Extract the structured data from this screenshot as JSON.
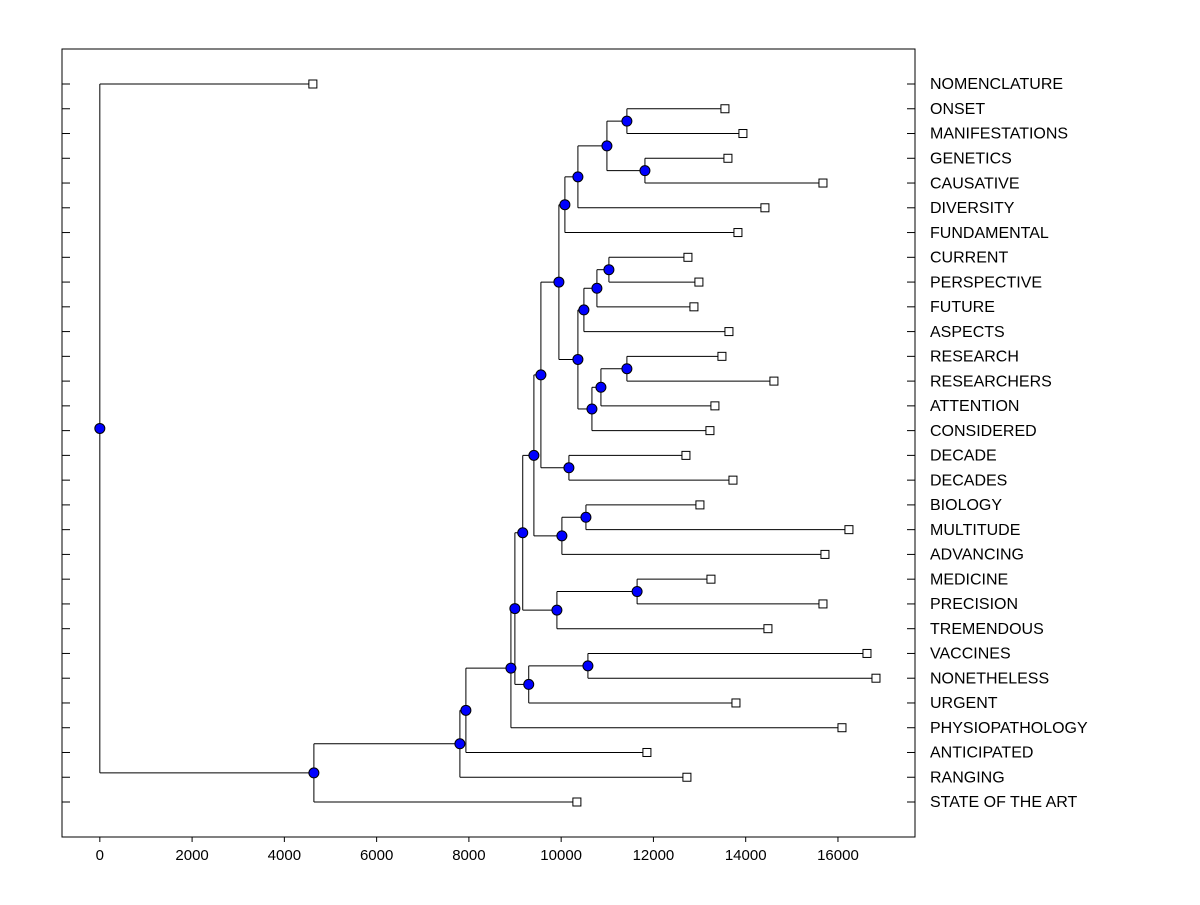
{
  "chart_data": {
    "type": "dendrogram",
    "xlim": [
      -820,
      17670
    ],
    "xticks": [
      0,
      2000,
      4000,
      6000,
      8000,
      10000,
      12000,
      14000,
      16000
    ],
    "node_color": "#0000ff",
    "tree": {
      "value": 0,
      "children": [
        {
          "label": "NOMENCLATURE",
          "value": 4618
        },
        {
          "value": 4640,
          "children": [
            {
              "value": 7805,
              "children": [
                {
                  "value": 7935,
                  "children": [
                    {
                      "value": 8911,
                      "children": [
                        {
                          "value": 8997,
                          "children": [
                            {
                              "value": 9167,
                              "children": [
                                {
                                  "value": 9409,
                                  "children": [
                                    {
                                      "value": 9561,
                                      "children": [
                                        {
                                          "value": 9951,
                                          "children": [
                                            {
                                              "value": 10081,
                                              "children": [
                                                {
                                                  "value": 10363,
                                                  "children": [
                                                    {
                                                      "value": 10992,
                                                      "children": [
                                                        {
                                                          "value": 11425,
                                                          "children": [
                                                            {
                                                              "label": "ONSET",
                                                              "value": 13550
                                                            },
                                                            {
                                                              "label": "MANIFESTATIONS",
                                                              "value": 13940
                                                            }
                                                          ]
                                                        },
                                                        {
                                                          "value": 11816,
                                                          "children": [
                                                            {
                                                              "label": "GENETICS",
                                                              "value": 13615
                                                            },
                                                            {
                                                              "label": "CAUSATIVE",
                                                              "value": 15675
                                                            }
                                                          ]
                                                        }
                                                      ]
                                                    },
                                                    {
                                                      "label": "DIVERSITY",
                                                      "value": 14417
                                                    }
                                                  ]
                                                },
                                                {
                                                  "label": "FUNDAMENTAL",
                                                  "value": 13832
                                                }
                                              ]
                                            },
                                            {
                                              "value": 10363,
                                              "children": [
                                                {
                                                  "value": 10493,
                                                  "children": [
                                                    {
                                                      "value": 10775,
                                                      "children": [
                                                        {
                                                          "value": 11035,
                                                          "children": [
                                                            {
                                                              "label": "CURRENT",
                                                              "value": 12748
                                                            },
                                                            {
                                                              "label": "PERSPECTIVE",
                                                              "value": 12986
                                                            }
                                                          ]
                                                        },
                                                        {
                                                          "label": "FUTURE",
                                                          "value": 12878
                                                        }
                                                      ]
                                                    },
                                                    {
                                                      "label": "ASPECTS",
                                                      "value": 13637
                                                    }
                                                  ]
                                                },
                                                {
                                                  "value": 10667,
                                                  "children": [
                                                    {
                                                      "value": 10862,
                                                      "children": [
                                                        {
                                                          "value": 11425,
                                                          "children": [
                                                            {
                                                              "label": "RESEARCH",
                                                              "value": 13485
                                                            },
                                                            {
                                                              "label": "RESEARCHERS",
                                                              "value": 14612
                                                            }
                                                          ]
                                                        },
                                                        {
                                                          "label": "ATTENTION",
                                                          "value": 13333
                                                        }
                                                      ]
                                                    },
                                                    {
                                                      "label": "CONSIDERED",
                                                      "value": 13225
                                                    }
                                                  ]
                                                }
                                              ]
                                            }
                                          ]
                                        },
                                        {
                                          "value": 10168,
                                          "children": [
                                            {
                                              "label": "DECADE",
                                              "value": 12705
                                            },
                                            {
                                              "label": "DECADES",
                                              "value": 13724
                                            }
                                          ]
                                        }
                                      ]
                                    },
                                    {
                                      "value": 10016,
                                      "children": [
                                        {
                                          "value": 10537,
                                          "children": [
                                            {
                                              "label": "BIOLOGY",
                                              "value": 13008
                                            },
                                            {
                                              "label": "MULTITUDE",
                                              "value": 16238
                                            }
                                          ]
                                        },
                                        {
                                          "label": "ADVANCING",
                                          "value": 15718
                                        }
                                      ]
                                    }
                                  ]
                                },
                                {
                                  "value": 9908,
                                  "children": [
                                    {
                                      "value": 11646,
                                      "children": [
                                        {
                                          "label": "MEDICINE",
                                          "value": 13247
                                        },
                                        {
                                          "label": "PRECISION",
                                          "value": 15675
                                        }
                                      ]
                                    },
                                    {
                                      "label": "TREMENDOUS",
                                      "value": 14482
                                    }
                                  ]
                                }
                              ]
                            },
                            {
                              "value": 9297,
                              "children": [
                                {
                                  "value": 10580,
                                  "children": [
                                    {
                                      "label": "VACCINES",
                                      "value": 16629
                                    },
                                    {
                                      "label": "NONETHELESS",
                                      "value": 16824
                                    }
                                  ]
                                },
                                {
                                  "label": "URGENT",
                                  "value": 13789
                                }
                              ]
                            }
                          ]
                        },
                        {
                          "label": "PHYSIOPATHOLOGY",
                          "value": 16087
                        }
                      ]
                    },
                    {
                      "label": "ANTICIPATED",
                      "value": 11859
                    }
                  ]
                },
                {
                  "label": "RANGING",
                  "value": 12726
                }
              ]
            },
            {
              "label": "STATE OF THE ART",
              "value": 10341
            }
          ]
        }
      ]
    }
  }
}
